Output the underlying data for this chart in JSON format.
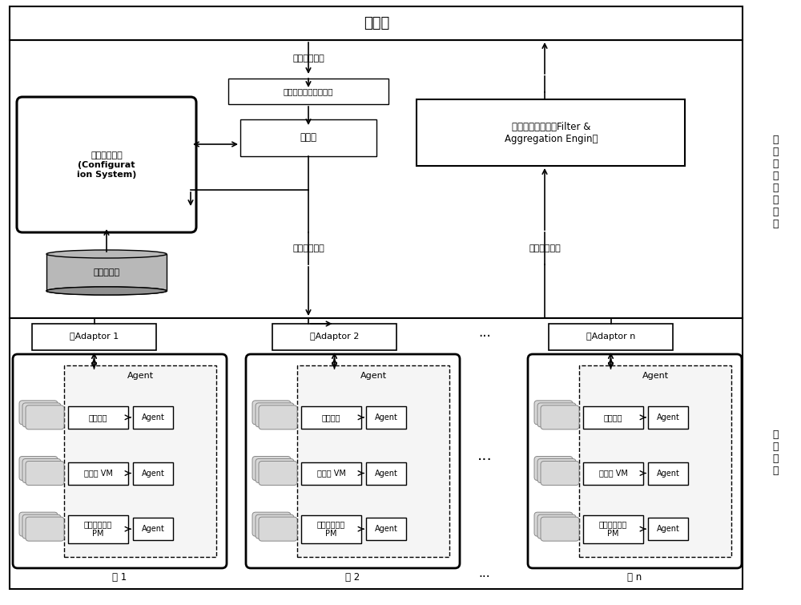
{
  "title_cloud_user": "云用户",
  "label_user_access_info": "用户访问信息",
  "label_user_access_parse_interface": "用户访问信息解析接口",
  "label_config_module": "配置管理模块\n(Configurat\nion System)",
  "label_parser": "解析器",
  "label_filter": "过滤与聚合引擎（Filter &\nAggregation Engin）",
  "label_monitor_rules": "监控规则库",
  "label_monitor_config_file": "监控配置文件",
  "label_monitor_data_info": "监控数据信息",
  "label_domain_adaptor1": "域Adaptor 1",
  "label_domain_adaptor2": "域Adaptor 2",
  "label_domain_adaptorn": "域Adaptor n",
  "label_agent": "Agent",
  "label_app": "应用程序",
  "label_vm": "虚拟机 VM",
  "label_pm": "物理基础设施\nPM",
  "label_domain1": "域 1",
  "label_domain2": "域 2",
  "label_domainn": "域 n",
  "label_dots": "···",
  "label_third_party": "第\n三\n方\n云\n监\n控\n机\n构",
  "label_monitor_entity": "监\n控\n实\n体",
  "bg_white": "#ffffff",
  "border_color": "#000000"
}
